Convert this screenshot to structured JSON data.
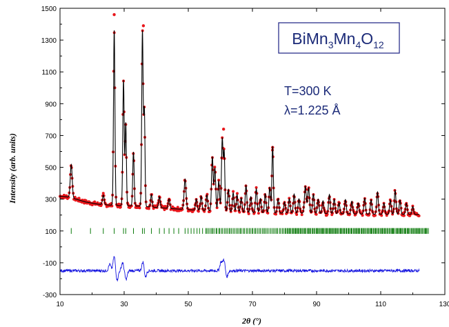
{
  "chart_data": {
    "type": "line",
    "title": "",
    "xlabel": "2θ (°)",
    "ylabel": "Intensity (arb. units)",
    "xlim": [
      10,
      130
    ],
    "ylim": [
      -300,
      1500
    ],
    "grid": false,
    "x_ticks": [
      "10",
      "30",
      "50",
      "70",
      "90",
      "110",
      "130"
    ],
    "y_ticks": [
      "-300",
      "-100",
      "100",
      "300",
      "500",
      "700",
      "900",
      "1100",
      "1300",
      "1500"
    ],
    "annotations": {
      "compound_label": {
        "base": "BiMn",
        "sub1": "3",
        "mid": "Mn",
        "sub2": "4",
        "end": "O",
        "sub3": "12"
      },
      "temperature": "T=300 K",
      "wavelength": "λ=1.225 Å"
    },
    "background": [
      [
        10,
        318
      ],
      [
        12,
        315
      ],
      [
        15,
        300
      ],
      [
        18,
        282
      ],
      [
        22,
        268
      ],
      [
        26,
        262
      ],
      [
        30,
        258
      ],
      [
        35,
        256
      ],
      [
        40,
        248
      ],
      [
        45,
        240
      ],
      [
        50,
        234
      ],
      [
        55,
        228
      ],
      [
        60,
        224
      ],
      [
        65,
        218
      ],
      [
        70,
        215
      ],
      [
        75,
        213
      ],
      [
        80,
        212
      ],
      [
        85,
        212
      ],
      [
        90,
        210
      ],
      [
        95,
        209
      ],
      [
        100,
        207
      ],
      [
        105,
        206
      ],
      [
        110,
        205
      ],
      [
        115,
        205
      ],
      [
        120,
        204
      ],
      [
        122,
        204
      ]
    ],
    "peaks": [
      [
        13.5,
        210,
        0.3
      ],
      [
        23.5,
        60,
        0.25
      ],
      [
        26.9,
        1100,
        0.22
      ],
      [
        29.8,
        790,
        0.22
      ],
      [
        30.5,
        520,
        0.2
      ],
      [
        32.9,
        340,
        0.22
      ],
      [
        35.7,
        1100,
        0.22
      ],
      [
        36.3,
        600,
        0.2
      ],
      [
        38.5,
        80,
        0.22
      ],
      [
        41,
        70,
        0.25
      ],
      [
        44,
        60,
        0.25
      ],
      [
        49,
        190,
        0.3
      ],
      [
        52.5,
        70,
        0.25
      ],
      [
        54,
        90,
        0.25
      ],
      [
        55.8,
        100,
        0.25
      ],
      [
        57.5,
        340,
        0.25
      ],
      [
        58.3,
        270,
        0.25
      ],
      [
        59.5,
        190,
        0.25
      ],
      [
        60.6,
        460,
        0.25
      ],
      [
        61.2,
        360,
        0.2
      ],
      [
        62.5,
        140,
        0.25
      ],
      [
        64,
        120,
        0.25
      ],
      [
        65.2,
        110,
        0.25
      ],
      [
        66.5,
        90,
        0.25
      ],
      [
        68,
        170,
        0.25
      ],
      [
        69.5,
        100,
        0.25
      ],
      [
        71.2,
        150,
        0.25
      ],
      [
        72.5,
        90,
        0.25
      ],
      [
        74,
        120,
        0.25
      ],
      [
        75.4,
        160,
        0.25
      ],
      [
        76.3,
        420,
        0.22
      ],
      [
        78,
        90,
        0.25
      ],
      [
        80,
        70,
        0.25
      ],
      [
        81.5,
        90,
        0.25
      ],
      [
        83,
        120,
        0.25
      ],
      [
        84.5,
        90,
        0.25
      ],
      [
        86.5,
        170,
        0.28
      ],
      [
        87.5,
        160,
        0.28
      ],
      [
        89,
        120,
        0.25
      ],
      [
        90.5,
        90,
        0.25
      ],
      [
        92,
        80,
        0.25
      ],
      [
        94,
        120,
        0.25
      ],
      [
        95.5,
        90,
        0.25
      ],
      [
        97,
        70,
        0.25
      ],
      [
        99,
        90,
        0.25
      ],
      [
        101,
        80,
        0.25
      ],
      [
        103,
        70,
        0.25
      ],
      [
        105,
        100,
        0.25
      ],
      [
        107,
        90,
        0.25
      ],
      [
        109,
        140,
        0.25
      ],
      [
        111,
        70,
        0.25
      ],
      [
        113,
        90,
        0.25
      ],
      [
        114.5,
        150,
        0.25
      ],
      [
        116,
        90,
        0.25
      ],
      [
        118,
        70,
        0.25
      ],
      [
        120,
        50,
        0.25
      ]
    ],
    "calc_range": [
      10,
      122
    ],
    "obs_spikes": [
      [
        26.9,
        1460
      ],
      [
        36.0,
        1390
      ],
      [
        61.0,
        740
      ],
      [
        76.3,
        625
      ]
    ],
    "reflection_row": {
      "y": 100,
      "half_height": 18,
      "start": 12,
      "end": 125
    },
    "difference": {
      "baseline": -150,
      "range": [
        10,
        122
      ],
      "features": [
        [
          25.5,
          40
        ],
        [
          26.9,
          90
        ],
        [
          27.8,
          -60
        ],
        [
          29.5,
          50
        ],
        [
          30.6,
          -55
        ],
        [
          35.9,
          60
        ],
        [
          36.6,
          -45
        ],
        [
          60.2,
          55
        ],
        [
          61.1,
          70
        ],
        [
          62.0,
          -40
        ]
      ]
    },
    "colors": {
      "observed": "#e8161b",
      "calculated": "#000000",
      "reflections": "#0a7a0a",
      "difference": "#1515e0",
      "label_box": "#2b2f8c",
      "label_text": "#1b2a78"
    }
  }
}
